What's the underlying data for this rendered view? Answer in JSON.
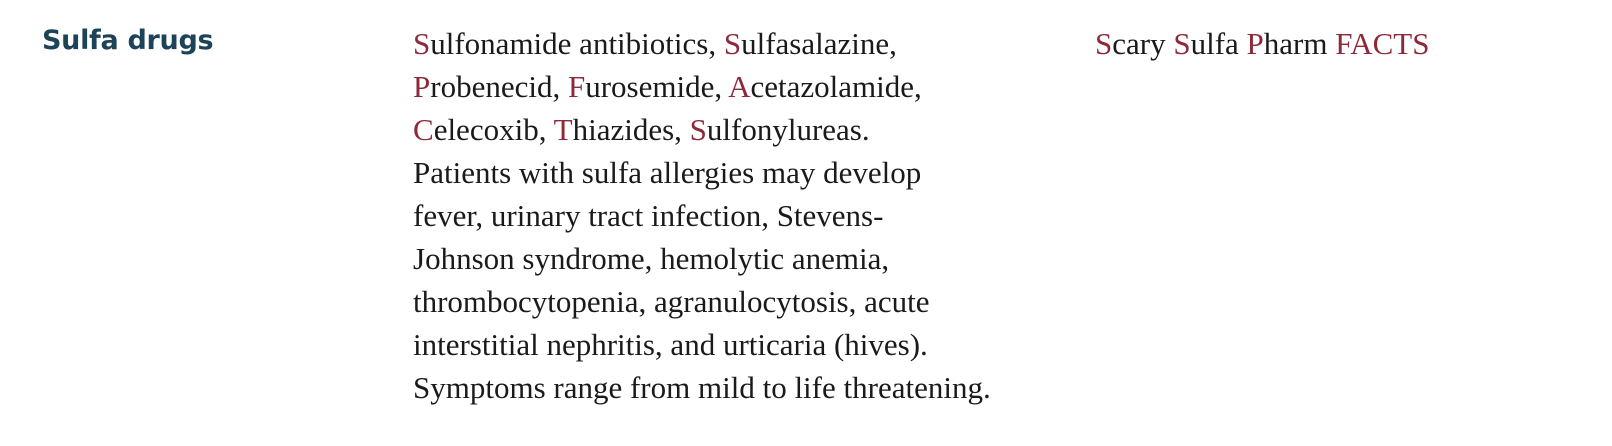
{
  "heading": "Sulfa drugs",
  "drug_list": [
    [
      {
        "letter": "S",
        "rest": "ulfonamide antibiotics, "
      },
      {
        "letter": "S",
        "rest": "ulfasalazine,"
      }
    ],
    [
      {
        "letter": "P",
        "rest": "robenecid, "
      },
      {
        "letter": "F",
        "rest": "urosemide, "
      },
      {
        "letter": "A",
        "rest": "cetazolamide,"
      }
    ],
    [
      {
        "letter": "C",
        "rest": "elecoxib, "
      },
      {
        "letter": "T",
        "rest": "hiazides, "
      },
      {
        "letter": "S",
        "rest": "ulfonylureas."
      }
    ]
  ],
  "allergy_lines": [
    "Patients with sulfa allergies may develop",
    "fever, urinary tract infection, Stevens-",
    "Johnson syndrome, hemolytic anemia,",
    "thrombocytopenia, agranulocytosis, acute",
    "interstitial nephritis, and urticaria (hives).",
    "Symptoms range from mild to life threatening."
  ],
  "mnemonic": [
    {
      "letter": "S",
      "rest": "cary "
    },
    {
      "letter": "S",
      "rest": "ulfa "
    },
    {
      "letter": "P",
      "rest": "harm "
    },
    {
      "letter": "FACTS",
      "rest": ""
    }
  ],
  "colors": {
    "heading": "#1d4358",
    "highlight": "#8c2a3a",
    "text": "#1a1a1a"
  }
}
